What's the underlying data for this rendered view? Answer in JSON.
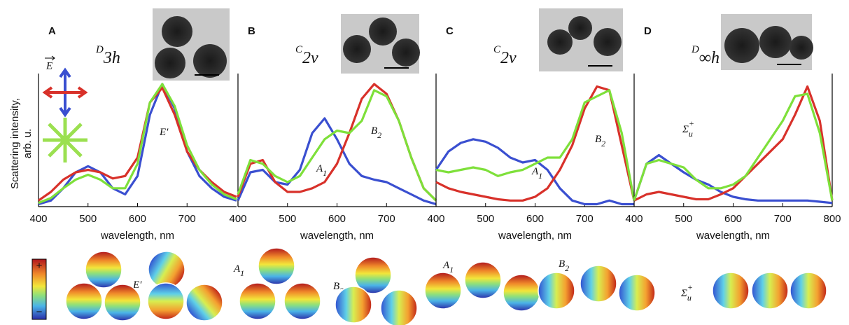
{
  "chart_data": [
    {
      "type": "line",
      "title": "A",
      "symmetry": {
        "main": "D",
        "sub": "3h"
      },
      "ylabel": [
        "Scattering intensity,",
        "arb. u."
      ],
      "xlabel": "wavelength, nm",
      "field_label": "E",
      "x": [
        400,
        425,
        450,
        475,
        500,
        525,
        550,
        575,
        600,
        625,
        650,
        675,
        700,
        725,
        750,
        775,
        800
      ],
      "xlim": [
        400,
        800
      ],
      "xticks": [
        400,
        500,
        600,
        700
      ],
      "ylim": [
        0,
        1
      ],
      "series": [
        {
          "color": "#3a4fd0",
          "values": [
            0.02,
            0.05,
            0.15,
            0.28,
            0.33,
            0.28,
            0.15,
            0.1,
            0.25,
            0.75,
            1.0,
            0.8,
            0.45,
            0.25,
            0.15,
            0.08,
            0.05
          ]
        },
        {
          "color": "#d8312a",
          "values": [
            0.05,
            0.12,
            0.22,
            0.28,
            0.3,
            0.28,
            0.23,
            0.25,
            0.4,
            0.85,
            0.97,
            0.75,
            0.45,
            0.3,
            0.2,
            0.12,
            0.08
          ]
        },
        {
          "color": "#7ee03a",
          "values": [
            0.03,
            0.07,
            0.15,
            0.22,
            0.26,
            0.22,
            0.15,
            0.15,
            0.35,
            0.85,
            1.0,
            0.82,
            0.5,
            0.3,
            0.18,
            0.1,
            0.06
          ]
        }
      ],
      "annotations": [
        {
          "main": "E′"
        }
      ],
      "mode_labels": [
        {
          "main": "E′"
        }
      ],
      "colorbar_labels": [
        "+",
        "−"
      ]
    },
    {
      "type": "line",
      "title": "B",
      "symmetry": {
        "main": "C",
        "sub": "2v"
      },
      "xlabel": "wavelength, nm",
      "x": [
        400,
        425,
        450,
        475,
        500,
        525,
        550,
        575,
        600,
        625,
        650,
        675,
        700,
        725,
        750,
        775,
        800
      ],
      "xlim": [
        400,
        800
      ],
      "xticks": [
        400,
        500,
        600,
        700
      ],
      "ylim": [
        0,
        1
      ],
      "series": [
        {
          "color": "#3a4fd0",
          "values": [
            0.05,
            0.28,
            0.3,
            0.2,
            0.18,
            0.3,
            0.6,
            0.72,
            0.55,
            0.35,
            0.25,
            0.22,
            0.2,
            0.15,
            0.1,
            0.05,
            0.02
          ]
        },
        {
          "color": "#d8312a",
          "values": [
            0.08,
            0.35,
            0.38,
            0.2,
            0.12,
            0.12,
            0.15,
            0.2,
            0.35,
            0.6,
            0.88,
            1.0,
            0.92,
            0.7,
            0.4,
            0.15,
            0.05
          ]
        },
        {
          "color": "#7ee03a",
          "values": [
            0.1,
            0.38,
            0.35,
            0.25,
            0.2,
            0.25,
            0.4,
            0.55,
            0.62,
            0.6,
            0.7,
            0.95,
            0.9,
            0.7,
            0.4,
            0.15,
            0.05
          ]
        }
      ],
      "annotations": [
        {
          "main": "A",
          "sub": "1"
        },
        {
          "main": "B",
          "sub": "2"
        }
      ],
      "mode_labels": [
        {
          "main": "A",
          "sub": "1"
        },
        {
          "main": "B",
          "sub": "2"
        }
      ]
    },
    {
      "type": "line",
      "title": "C",
      "symmetry": {
        "main": "C",
        "sub": "2v"
      },
      "xlabel": "wavelength, nm",
      "x": [
        400,
        425,
        450,
        475,
        500,
        525,
        550,
        575,
        600,
        625,
        650,
        675,
        700,
        725,
        750,
        775,
        800
      ],
      "xlim": [
        400,
        800
      ],
      "xticks": [
        400,
        500,
        600,
        700
      ],
      "ylim": [
        0,
        1
      ],
      "series": [
        {
          "color": "#3a4fd0",
          "values": [
            0.3,
            0.45,
            0.52,
            0.55,
            0.53,
            0.48,
            0.4,
            0.36,
            0.38,
            0.3,
            0.15,
            0.05,
            0.02,
            0.02,
            0.05,
            0.02,
            0.02
          ]
        },
        {
          "color": "#d8312a",
          "values": [
            0.2,
            0.15,
            0.12,
            0.1,
            0.08,
            0.06,
            0.05,
            0.05,
            0.08,
            0.15,
            0.3,
            0.5,
            0.8,
            0.98,
            0.95,
            0.5,
            0.05
          ]
        },
        {
          "color": "#7ee03a",
          "values": [
            0.3,
            0.28,
            0.3,
            0.32,
            0.3,
            0.25,
            0.28,
            0.3,
            0.35,
            0.4,
            0.4,
            0.55,
            0.85,
            0.9,
            0.95,
            0.6,
            0.05
          ]
        }
      ],
      "annotations": [
        {
          "main": "A",
          "sub": "1"
        },
        {
          "main": "B",
          "sub": "2"
        }
      ],
      "mode_labels": [
        {
          "main": "A",
          "sub": "1"
        },
        {
          "main": "B",
          "sub": "2"
        }
      ]
    },
    {
      "type": "line",
      "title": "D",
      "symmetry": {
        "main": "D",
        "sub": "∞h"
      },
      "xlabel": "wavelength, nm",
      "x": [
        400,
        425,
        450,
        475,
        500,
        525,
        550,
        575,
        600,
        625,
        650,
        675,
        700,
        725,
        750,
        775,
        800
      ],
      "xlim": [
        400,
        800
      ],
      "xticks": [
        400,
        500,
        600,
        700,
        800
      ],
      "ylim": [
        0,
        1
      ],
      "series": [
        {
          "color": "#3a4fd0",
          "values": [
            0.05,
            0.35,
            0.42,
            0.35,
            0.28,
            0.22,
            0.18,
            0.12,
            0.08,
            0.06,
            0.05,
            0.05,
            0.05,
            0.05,
            0.05,
            0.04,
            0.03
          ]
        },
        {
          "color": "#d8312a",
          "values": [
            0.05,
            0.1,
            0.12,
            0.1,
            0.08,
            0.06,
            0.06,
            0.1,
            0.15,
            0.25,
            0.35,
            0.45,
            0.55,
            0.75,
            0.98,
            0.7,
            0.05
          ]
        },
        {
          "color": "#7ee03a",
          "values": [
            0.05,
            0.35,
            0.38,
            0.35,
            0.32,
            0.22,
            0.15,
            0.15,
            0.18,
            0.25,
            0.4,
            0.55,
            0.7,
            0.9,
            0.92,
            0.6,
            0.05
          ]
        }
      ],
      "annotations": [
        {
          "main": "Σ",
          "sub": "u",
          "sup": "+"
        }
      ],
      "mode_labels": [
        {
          "main": "Σ",
          "sub": "u",
          "sup": "+"
        }
      ]
    }
  ]
}
